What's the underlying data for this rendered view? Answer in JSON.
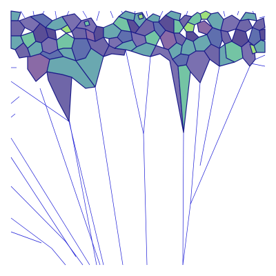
{
  "figure": {
    "description_visible_text": "",
    "palette": [
      "#7a70b0",
      "#6aa8b0",
      "#5a4e96",
      "#74c4a4",
      "#9ee07a",
      "#8a6aa6",
      "#5f6fae"
    ],
    "edge_color": "#1c1c8a",
    "ridge_color": "#1a1ad6",
    "background": "#ffffff"
  }
}
